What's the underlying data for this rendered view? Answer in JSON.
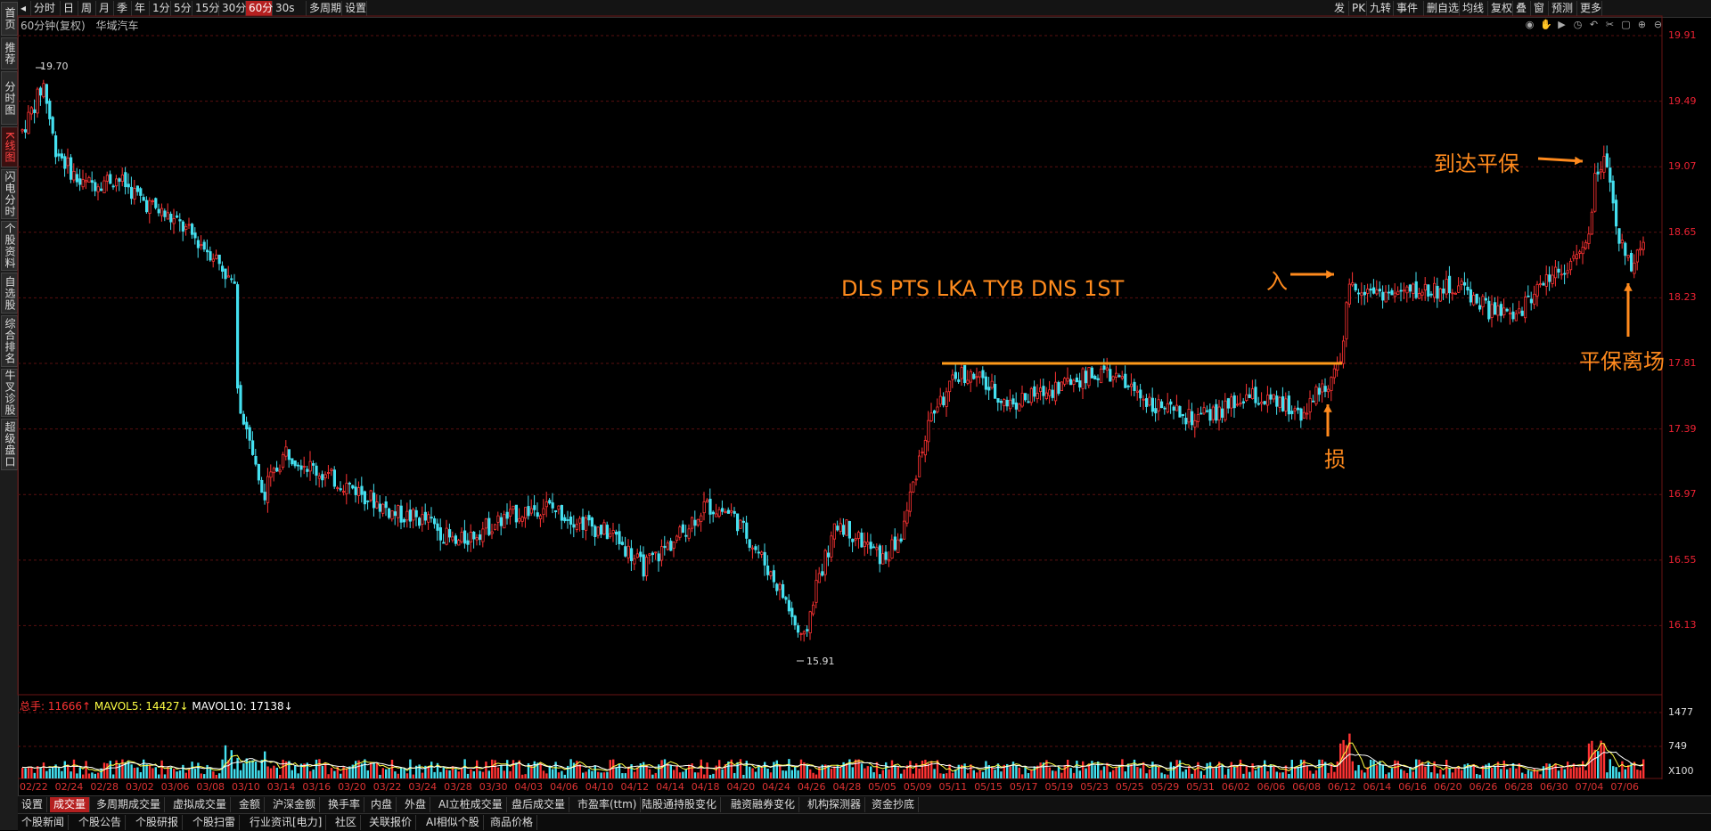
{
  "left_tabs": [
    {
      "label": "首页"
    },
    {
      "label": "推荐"
    },
    {
      "label": "分时图"
    },
    {
      "label": "K线图",
      "active": true
    },
    {
      "label": "闪电分时"
    },
    {
      "label": "个股资料"
    },
    {
      "label": "自选股"
    },
    {
      "label": "综合排名"
    },
    {
      "label": "牛叉诊股"
    },
    {
      "label": "超级盘口"
    }
  ],
  "toolbar": {
    "periods": [
      "分时",
      "日",
      "周",
      "月",
      "季",
      "年",
      "1分",
      "5分",
      "15分",
      "30分",
      "60分",
      "30s",
      "多周期",
      "设置"
    ],
    "active_period": "60分",
    "right_items": [
      "发",
      "PK",
      "九转",
      "事件",
      "删自选",
      "均线",
      "复权",
      "叠",
      "窗",
      "预测",
      "更多"
    ]
  },
  "title": {
    "period": "60分钟(复权)",
    "stock": "华域汽车"
  },
  "chart_data": {
    "type": "candlestick",
    "title": "华域汽车 60分钟(复权)",
    "ylim": [
      15.91,
      19.91
    ],
    "y_ticks": [
      "19.91",
      "19.49",
      "19.07",
      "18.65",
      "18.23",
      "17.81",
      "17.39",
      "16.97",
      "16.55",
      "16.13"
    ],
    "high_label": "19.70",
    "low_label": "15.91",
    "x_dates": [
      "02/22",
      "02/24",
      "02/28",
      "03/02",
      "03/06",
      "03/08",
      "03/10",
      "03/14",
      "03/16",
      "03/20",
      "03/22",
      "03/24",
      "03/28",
      "03/30",
      "04/03",
      "04/06",
      "04/10",
      "04/12",
      "04/14",
      "04/18",
      "04/20",
      "04/24",
      "04/26",
      "04/28",
      "05/05",
      "05/09",
      "05/11",
      "05/15",
      "05/17",
      "05/19",
      "05/23",
      "05/25",
      "05/29",
      "05/31",
      "06/02",
      "06/06",
      "06/08",
      "06/12",
      "06/14",
      "06/16",
      "06/20",
      "06/26",
      "06/28",
      "06/30",
      "07/04",
      "07/06"
    ],
    "resistance_level": 17.81,
    "volume_ticks": [
      "1477",
      "749",
      "X100"
    ],
    "colors": {
      "up": "#ff3333",
      "down": "#44e0f0",
      "resistance": "#ff9a1a",
      "ma5": "#ffffff",
      "ma10": "#ffff44",
      "grid": "#5a1010"
    }
  },
  "annotations": {
    "strategy": "DLS PTS LKA TYB DNS 1ST",
    "entry": "入",
    "stop": "损",
    "breakeven_reached": "到达平保",
    "breakeven_exit": "平保离场"
  },
  "volume_legend": {
    "total_label": "总手: ",
    "total_value": "11666↑",
    "mavol5": "MAVOL5: 14427↓",
    "mavol10": "MAVOL10: 17138↓"
  },
  "bottom_tabs": [
    "设置",
    "成交量",
    "多周期成交量",
    "虚拟成交量",
    "金额",
    "沪深金额",
    "换手率",
    "内盘",
    "外盘",
    "AI立桩成交量",
    "盘后成交量",
    "市盈率(ttm)",
    "陆股通持股变化",
    "融资融券变化",
    "机构探测器",
    "资金抄底"
  ],
  "bottom_active": "成交量",
  "news_tabs": [
    "个股新闻",
    "个股公告",
    "个股研报",
    "个股扫雷",
    "行业资讯[电力]",
    "社区",
    "关联报价",
    "AI相似个股",
    "商品价格"
  ]
}
